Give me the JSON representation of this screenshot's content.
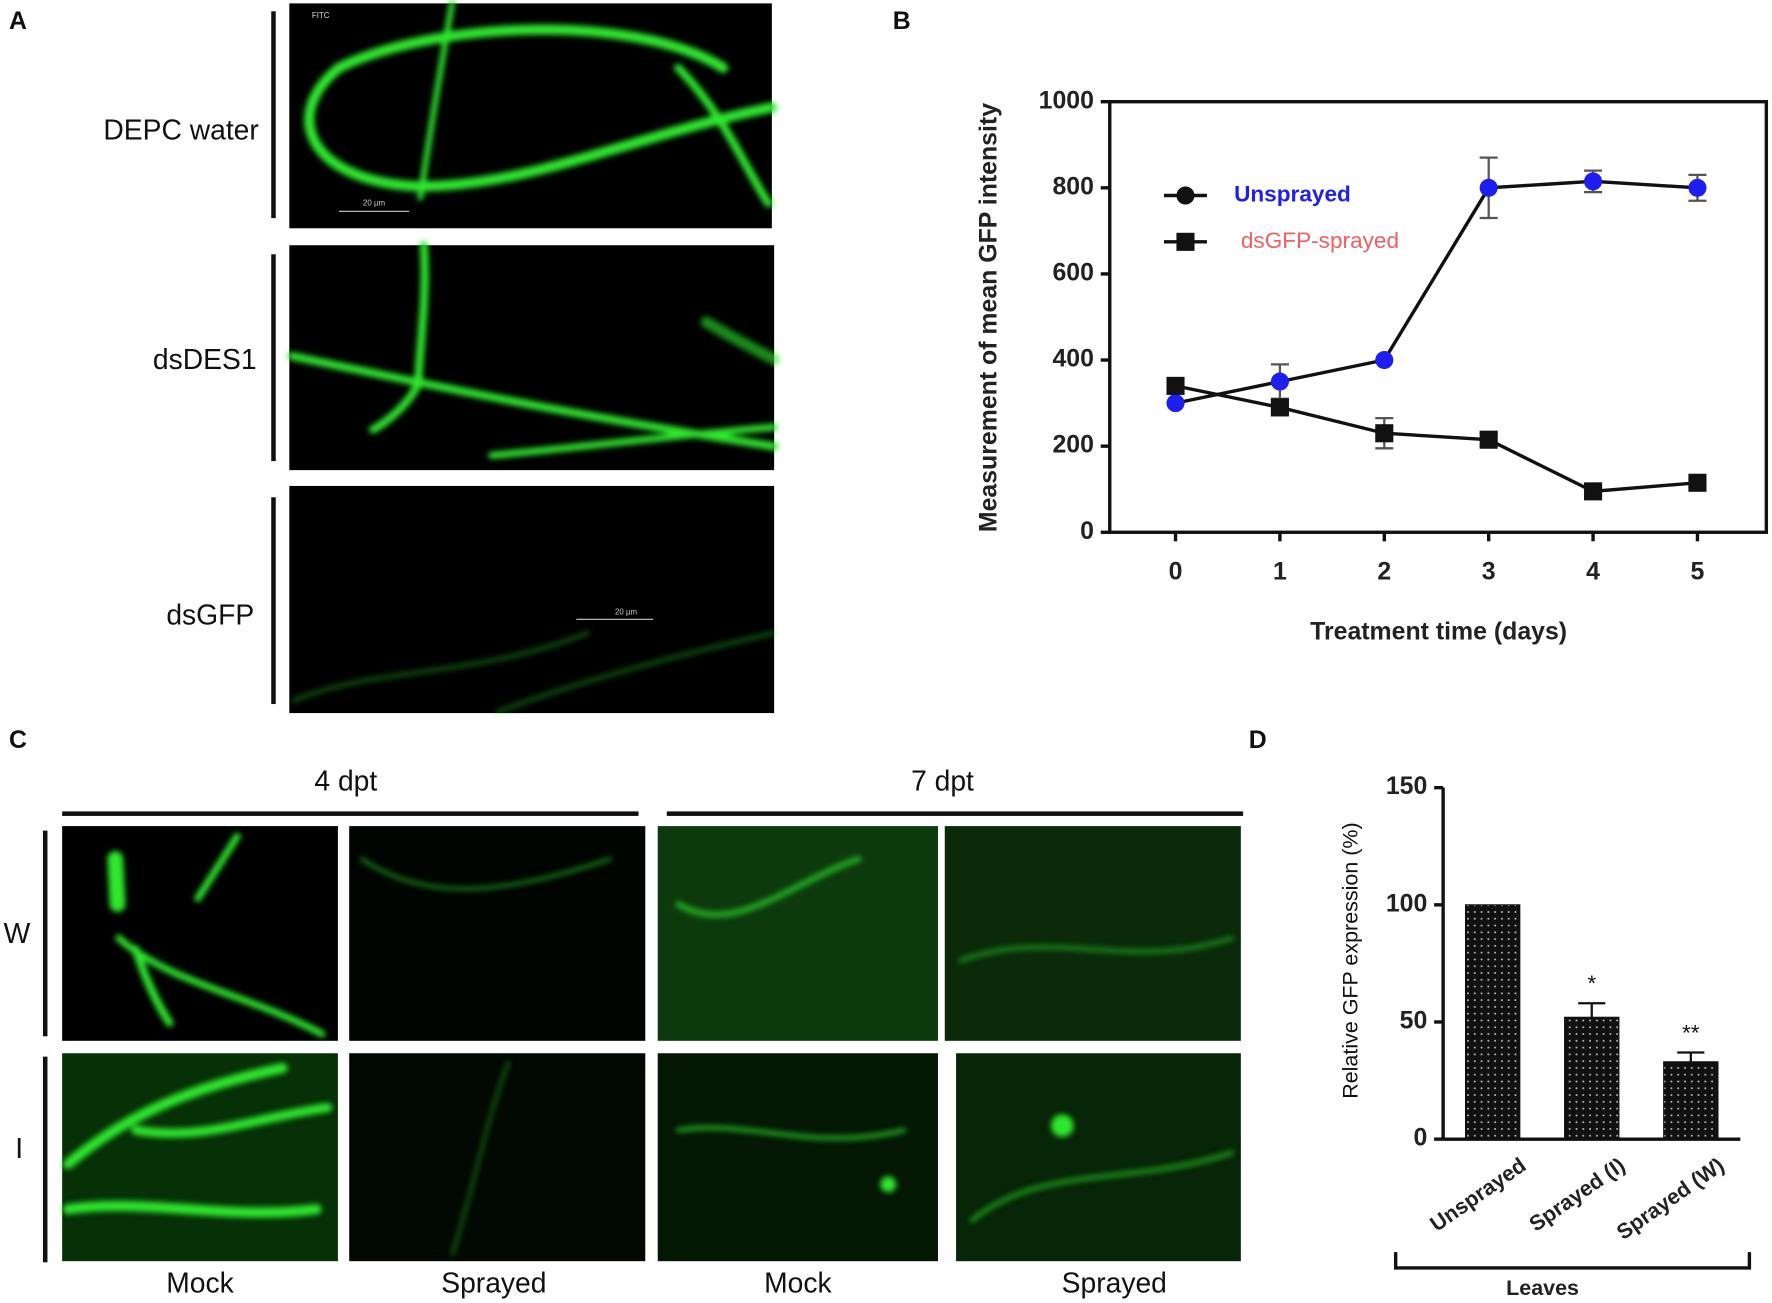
{
  "panel_labels": [
    "A",
    "B",
    "C",
    "D"
  ],
  "panel_a": {
    "rows": [
      "DEPC water",
      "dsDES1",
      "dsGFP"
    ],
    "channel": "FITC",
    "scale_bars": [
      "20 µm",
      "20 µm"
    ]
  },
  "panel_c": {
    "groups": [
      "4 dpt",
      "7 dpt"
    ],
    "rows": [
      "W",
      "I"
    ],
    "columns": [
      "Mock",
      "Sprayed",
      "Mock",
      "Sprayed"
    ]
  },
  "chart_data": [
    {
      "type": "line",
      "ylabel": "Measurement of mean GFP intensity",
      "xlabel": "Treatment time (days)",
      "x": [
        0,
        1,
        2,
        3,
        4,
        5
      ],
      "xlim": [
        -0.63,
        5.66
      ],
      "xticks": [
        0,
        1,
        2,
        3,
        4,
        5
      ],
      "ylim": [
        0,
        1000
      ],
      "yticks": [
        0,
        200,
        400,
        600,
        800,
        1000
      ],
      "series": [
        {
          "name": "Unsprayed",
          "color": "#1e1ef0",
          "marker": "circle",
          "values": [
            300,
            350,
            400,
            800,
            815,
            800
          ],
          "errors": [
            0,
            40,
            0,
            70,
            25,
            30
          ]
        },
        {
          "name": "dsGFP-sprayed",
          "color": "#111111",
          "marker": "square",
          "values": [
            340,
            290,
            230,
            215,
            95,
            115
          ],
          "errors": [
            0,
            15,
            35,
            15,
            10,
            10
          ]
        }
      ]
    },
    {
      "type": "bar",
      "ylabel": "Relative GFP expression (%)",
      "xlabel": "Leaves",
      "categories": [
        "Unsprayed",
        "Sprayed (I)",
        "Sprayed (W)"
      ],
      "values": [
        100,
        52,
        33
      ],
      "errors": [
        0,
        6,
        4
      ],
      "color": "#111111",
      "ylim": [
        0,
        150
      ],
      "yticks": [
        0,
        50,
        100,
        150
      ],
      "annotations": [
        {
          "text": "*",
          "x": "Sprayed (I)"
        },
        {
          "text": "**",
          "x": "Sprayed (W)"
        }
      ]
    }
  ]
}
